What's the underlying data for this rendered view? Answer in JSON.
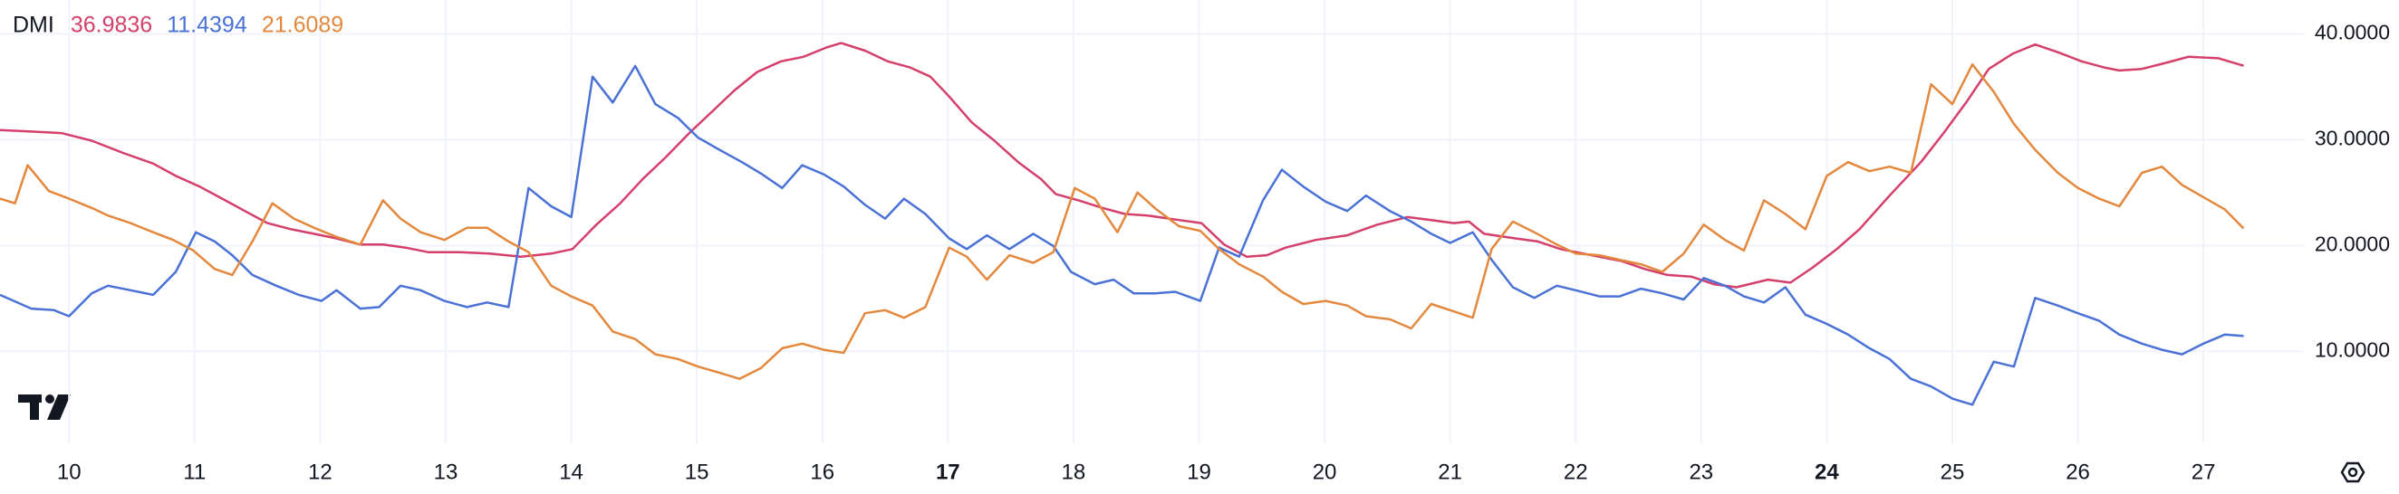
{
  "chart_data": {
    "type": "line",
    "title": "DMI",
    "xlim": [
      9.45,
      27.8
    ],
    "xticks": [
      10,
      11,
      12,
      13,
      14,
      15,
      16,
      17,
      18,
      19,
      20,
      21,
      22,
      23,
      24,
      25,
      26,
      27
    ],
    "major_xticks": [
      17,
      24
    ],
    "ylim": [
      1.3,
      43.2
    ],
    "yticks": [
      {
        "value": 10,
        "label": "10.0000"
      },
      {
        "value": 20,
        "label": "20.0000"
      },
      {
        "value": 30,
        "label": "30.0000"
      },
      {
        "value": 40,
        "label": "40.0000"
      }
    ],
    "grid": true,
    "series": [
      {
        "color": "#d43f6b",
        "x": [
          9.45,
          9.7,
          9.94,
          10.18,
          10.43,
          10.67,
          10.85,
          11.04,
          11.22,
          11.4,
          11.58,
          11.77,
          11.95,
          12.13,
          12.32,
          12.5,
          12.68,
          12.86,
          13.11,
          13.35,
          13.6,
          13.84,
          14.01,
          14.2,
          14.39,
          14.57,
          14.75,
          14.94,
          15.12,
          15.3,
          15.48,
          15.67,
          15.85,
          16.03,
          16.15,
          16.34,
          16.52,
          16.7,
          16.86,
          17.01,
          17.19,
          17.37,
          17.56,
          17.74,
          17.86,
          18.04,
          18.23,
          18.41,
          18.59,
          18.84,
          19.02,
          19.2,
          19.38,
          19.54,
          19.69,
          19.93,
          20.18,
          20.42,
          20.66,
          20.85,
          21.03,
          21.15,
          21.27,
          21.52,
          21.7,
          21.88,
          22.13,
          22.37,
          22.55,
          22.73,
          22.92,
          23.1,
          23.28,
          23.53,
          23.71,
          23.89,
          24.08,
          24.26,
          24.5,
          24.75,
          24.93,
          25.11,
          25.29,
          25.48,
          25.66,
          25.84,
          26.03,
          26.21,
          26.33,
          26.51,
          26.7,
          26.88,
          27.12,
          27.32
        ],
        "values": [
          30.91,
          30.77,
          30.62,
          29.9,
          28.75,
          27.74,
          26.58,
          25.57,
          24.42,
          23.26,
          22.11,
          21.53,
          21.1,
          20.67,
          20.09,
          20.09,
          19.8,
          19.37,
          19.37,
          19.23,
          18.94,
          19.23,
          19.66,
          21.97,
          23.99,
          26.29,
          28.31,
          30.62,
          32.64,
          34.66,
          36.39,
          37.4,
          37.83,
          38.7,
          39.13,
          38.41,
          37.4,
          36.82,
          35.96,
          34.08,
          31.63,
          29.9,
          27.88,
          26.29,
          24.85,
          24.27,
          23.55,
          22.98,
          22.83,
          22.4,
          22.11,
          20.09,
          18.94,
          19.08,
          19.8,
          20.52,
          20.96,
          21.97,
          22.69,
          22.4,
          22.11,
          22.26,
          21.1,
          20.67,
          20.38,
          19.66,
          19.08,
          18.51,
          17.78,
          17.21,
          17.06,
          16.34,
          16.05,
          16.77,
          16.49,
          17.93,
          19.66,
          21.53,
          24.71,
          27.88,
          30.62,
          33.51,
          36.68,
          38.12,
          38.99,
          38.27,
          37.4,
          36.82,
          36.54,
          36.68,
          37.26,
          37.83,
          37.69,
          36.9836
        ]
      },
      {
        "color": "#4a72d6",
        "x": [
          9.45,
          9.7,
          9.88,
          10.0,
          10.18,
          10.31,
          10.49,
          10.67,
          10.85,
          11.01,
          11.16,
          11.3,
          11.46,
          11.65,
          11.83,
          12.01,
          12.13,
          12.32,
          12.47,
          12.64,
          12.8,
          12.99,
          13.17,
          13.33,
          13.5,
          13.66,
          13.84,
          14.0,
          14.17,
          14.33,
          14.51,
          14.67,
          14.85,
          15.01,
          15.18,
          15.36,
          15.52,
          15.68,
          15.84,
          16.01,
          16.17,
          16.34,
          16.5,
          16.65,
          16.82,
          17.01,
          17.15,
          17.31,
          17.49,
          17.68,
          17.84,
          17.98,
          18.17,
          18.32,
          18.48,
          18.65,
          18.81,
          19.01,
          19.16,
          19.32,
          19.51,
          19.66,
          19.83,
          20.01,
          20.18,
          20.33,
          20.52,
          20.69,
          20.85,
          21.0,
          21.18,
          21.33,
          21.5,
          21.67,
          21.85,
          22.0,
          22.19,
          22.35,
          22.52,
          22.69,
          22.86,
          23.02,
          23.19,
          23.34,
          23.5,
          23.67,
          23.83,
          24.0,
          24.17,
          24.34,
          24.5,
          24.67,
          24.83,
          25.0,
          25.16,
          25.33,
          25.49,
          25.66,
          25.84,
          26.0,
          26.17,
          26.33,
          26.51,
          26.67,
          26.83,
          27.0,
          27.17,
          27.32
        ],
        "values": [
          15.33,
          14.03,
          13.89,
          13.31,
          15.48,
          16.2,
          15.77,
          15.33,
          17.5,
          21.25,
          20.38,
          19.08,
          17.21,
          16.2,
          15.33,
          14.76,
          15.77,
          14.03,
          14.18,
          16.2,
          15.77,
          14.76,
          14.18,
          14.61,
          14.18,
          25.43,
          23.7,
          22.69,
          35.96,
          33.51,
          36.97,
          33.36,
          32.06,
          30.19,
          29.04,
          27.88,
          26.73,
          25.43,
          27.59,
          26.73,
          25.57,
          23.84,
          22.54,
          24.42,
          22.98,
          20.67,
          19.66,
          20.96,
          19.66,
          21.1,
          19.95,
          17.5,
          16.34,
          16.77,
          15.48,
          15.48,
          15.62,
          14.76,
          19.8,
          18.94,
          24.27,
          27.16,
          25.57,
          24.13,
          23.26,
          24.71,
          23.26,
          22.26,
          21.1,
          20.24,
          21.25,
          18.65,
          16.05,
          15.04,
          16.2,
          15.77,
          15.19,
          15.19,
          15.91,
          15.48,
          14.9,
          16.92,
          16.2,
          15.19,
          14.61,
          16.05,
          13.46,
          12.59,
          11.58,
          10.29,
          9.27,
          7.4,
          6.68,
          5.52,
          4.95,
          9.01,
          8.55,
          15.04,
          14.32,
          13.6,
          12.88,
          11.58,
          10.72,
          10.14,
          9.71,
          10.72,
          11.58,
          11.4394
        ]
      },
      {
        "color": "#e4883e",
        "x": [
          9.45,
          9.57,
          9.67,
          9.84,
          10.0,
          10.18,
          10.31,
          10.49,
          10.67,
          10.83,
          10.99,
          11.16,
          11.3,
          11.46,
          11.62,
          11.79,
          11.95,
          12.13,
          12.32,
          12.5,
          12.64,
          12.8,
          12.99,
          13.17,
          13.33,
          13.5,
          13.66,
          13.84,
          14.0,
          14.17,
          14.33,
          14.51,
          14.67,
          14.85,
          15.01,
          15.18,
          15.34,
          15.51,
          15.68,
          15.84,
          16.01,
          16.17,
          16.34,
          16.5,
          16.65,
          16.82,
          17.01,
          17.15,
          17.31,
          17.49,
          17.68,
          17.84,
          18.01,
          18.17,
          18.35,
          18.51,
          18.66,
          18.84,
          19.01,
          19.16,
          19.32,
          19.51,
          19.66,
          19.83,
          20.01,
          20.18,
          20.33,
          20.52,
          20.69,
          20.85,
          21.0,
          21.18,
          21.33,
          21.5,
          21.67,
          21.85,
          22.0,
          22.19,
          22.35,
          22.52,
          22.69,
          22.86,
          23.02,
          23.19,
          23.34,
          23.5,
          23.67,
          23.83,
          24.0,
          24.17,
          24.34,
          24.5,
          24.67,
          24.83,
          25.0,
          25.16,
          25.33,
          25.49,
          25.66,
          25.84,
          26.0,
          26.17,
          26.33,
          26.51,
          26.67,
          26.83,
          27.0,
          27.17,
          27.32
        ],
        "values": [
          24.42,
          23.99,
          27.59,
          25.14,
          24.42,
          23.55,
          22.83,
          22.11,
          21.25,
          20.52,
          19.52,
          17.78,
          17.21,
          20.38,
          23.99,
          22.54,
          21.68,
          20.81,
          20.09,
          24.27,
          22.54,
          21.25,
          20.52,
          21.68,
          21.68,
          20.38,
          19.37,
          16.2,
          15.19,
          14.32,
          11.87,
          11.15,
          9.71,
          9.27,
          8.55,
          7.98,
          7.4,
          8.41,
          10.29,
          10.72,
          10.14,
          9.85,
          13.6,
          13.89,
          13.17,
          14.18,
          19.8,
          18.94,
          16.77,
          19.08,
          18.36,
          19.37,
          25.43,
          24.42,
          21.25,
          25.0,
          23.41,
          21.82,
          21.39,
          19.66,
          18.22,
          17.06,
          15.62,
          14.47,
          14.76,
          14.32,
          13.31,
          13.02,
          12.16,
          14.47,
          13.89,
          13.17,
          19.66,
          22.26,
          21.25,
          20.09,
          19.23,
          19.08,
          18.65,
          18.22,
          17.5,
          19.23,
          21.97,
          20.52,
          19.52,
          24.27,
          22.98,
          21.53,
          26.58,
          27.88,
          27.02,
          27.45,
          26.87,
          35.24,
          33.36,
          37.11,
          34.52,
          31.49,
          29.04,
          26.87,
          25.43,
          24.42,
          23.7,
          26.87,
          27.45,
          25.72,
          24.57,
          23.41,
          21.6089
        ]
      }
    ]
  }
}
